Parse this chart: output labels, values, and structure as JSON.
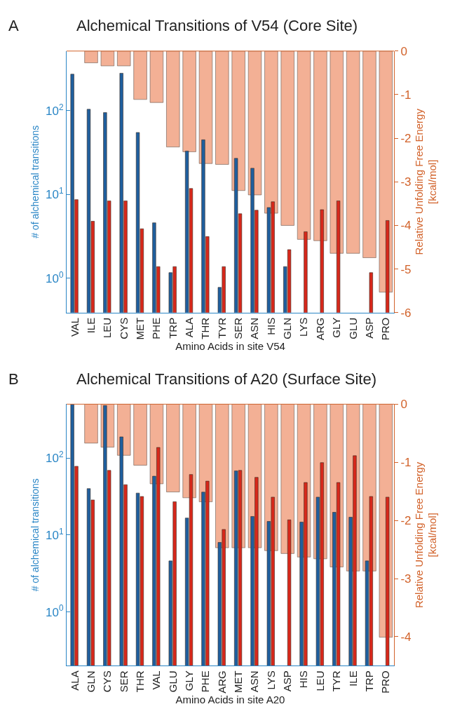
{
  "chart_data": [
    {
      "type": "bar",
      "title": "Alchemical Transitions of V54 (Core Site)",
      "annotations": [
        "A"
      ],
      "xlabel": "Amino Acids in site V54",
      "ylabel": "# of alchemical transitions",
      "y2label": "Relative Unfolding Free Energy\n[kcal/mol]",
      "categories": [
        "VAL",
        "ILE",
        "LEU",
        "CYS",
        "MET",
        "PHE",
        "TRP",
        "ALA",
        "THR",
        "TYR",
        "SER",
        "ASN",
        "HIS",
        "GLN",
        "LYS",
        "ARG",
        "GLY",
        "GLU",
        "ASP",
        "PRO"
      ],
      "log": "y",
      "ylim": [
        0.39,
        515
      ],
      "yticks": [
        {
          "value": 1,
          "label": "10$^{0}$"
        },
        {
          "value": 10,
          "label": "10$^{1}$"
        },
        {
          "value": 100,
          "label": "10$^{2}$"
        }
      ],
      "y2lim": [
        -6,
        0
      ],
      "y2ticks": [
        -6,
        -5,
        -4,
        -3,
        -2,
        -1,
        0
      ],
      "grid": false,
      "series": [
        {
          "color": "#1f5f9e",
          "values": [
            273,
            104,
            95,
            280,
            55,
            4.6,
            1.17,
            33,
            45,
            0.78,
            27,
            20.6,
            7,
            1.38,
            null,
            null,
            null,
            null,
            null,
            null
          ]
        },
        {
          "color": "#d7281b",
          "values": [
            8.7,
            4.8,
            8.4,
            8.4,
            3.9,
            1.38,
            1.38,
            11.8,
            3.15,
            1.38,
            5.9,
            6.5,
            8.2,
            2.2,
            3.6,
            6.6,
            8.4,
            null,
            1.17,
            4.9
          ]
        },
        {
          "color": "#f09a78",
          "axis": "y2",
          "values": [
            null,
            -0.27,
            -0.34,
            -0.34,
            -1.11,
            -1.18,
            -2.2,
            -2.31,
            -2.58,
            -2.6,
            -3.2,
            -3.3,
            -3.72,
            -4.0,
            -4.32,
            -4.35,
            -4.64,
            -4.64,
            -4.74,
            -5.53
          ]
        }
      ]
    },
    {
      "type": "bar",
      "title": "Alchemical Transitions of A20 (Surface Site)",
      "annotations": [
        "B"
      ],
      "xlabel": "Amino Acids in site A20",
      "ylabel": "# of alchemical transitions",
      "y2label": "Relative Unfolding Free Energy\n[kcal/mol]",
      "categories": [
        "ALA",
        "GLN",
        "CYS",
        "SER",
        "THR",
        "VAL",
        "GLU",
        "GLY",
        "PHE",
        "ARG",
        "MET",
        "ASN",
        "LYS",
        "ASP",
        "HIS",
        "LEU",
        "TYR",
        "ILE",
        "TRP",
        "PRO"
      ],
      "log": "y",
      "ylim": [
        0.2,
        500
      ],
      "yticks": [
        {
          "value": 1,
          "label": "10$^{0}$"
        },
        {
          "value": 10,
          "label": "10$^{1}$"
        },
        {
          "value": 100,
          "label": "10$^{2}$"
        }
      ],
      "y2lim": [
        -4.5,
        0
      ],
      "y2ticks": [
        -4,
        -3,
        -2,
        -1,
        0
      ],
      "grid": false,
      "series": [
        {
          "color": "#1f5f9e",
          "values": [
            500,
            40,
            480,
            188,
            35,
            58,
            4.6,
            16.6,
            36,
            8,
            68,
            17.4,
            15,
            null,
            14.7,
            31,
            19.7,
            17,
            4.6,
            null
          ]
        },
        {
          "color": "#d7281b",
          "values": [
            78,
            28.5,
            69,
            45,
            31.6,
            137,
            27,
            61,
            50,
            11.8,
            69,
            56,
            31,
            15.7,
            48,
            87,
            48,
            107,
            31.6,
            31
          ]
        },
        {
          "color": "#f09a78",
          "axis": "y2",
          "values": [
            null,
            -0.67,
            -0.74,
            -0.88,
            -1.05,
            -1.37,
            -1.51,
            -1.61,
            -1.68,
            -2.47,
            -2.47,
            -2.47,
            -2.52,
            -2.57,
            -2.63,
            -2.66,
            -2.8,
            -2.87,
            -2.87,
            -4.01
          ]
        }
      ]
    }
  ]
}
